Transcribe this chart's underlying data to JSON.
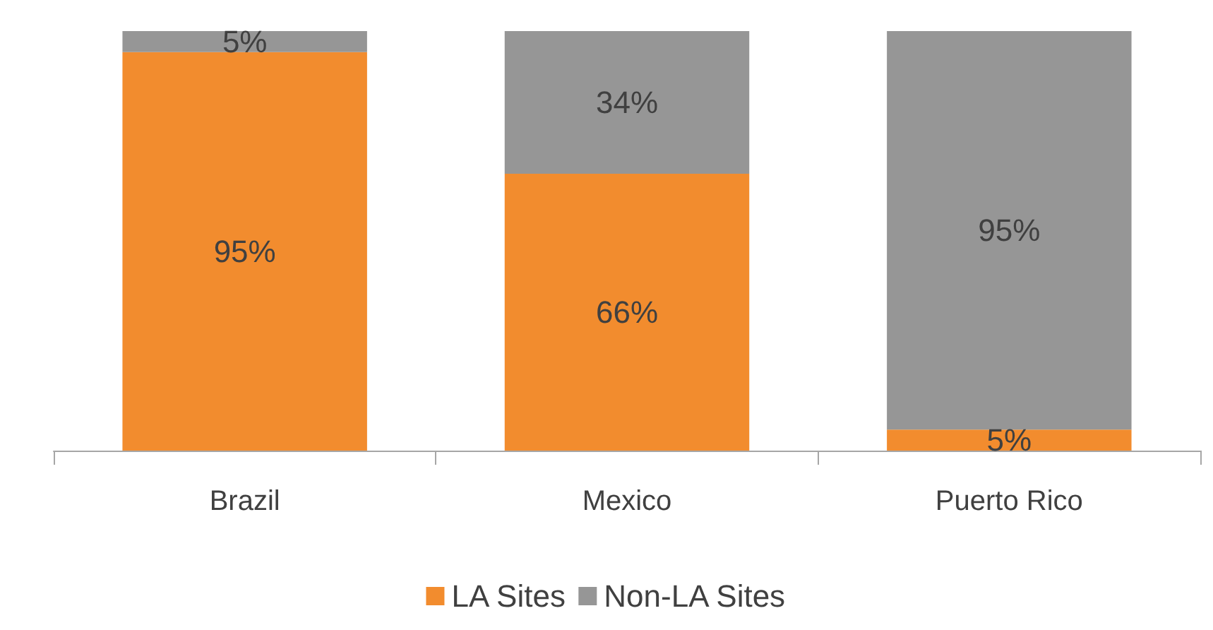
{
  "chart_data": {
    "type": "bar",
    "stacked": true,
    "categories": [
      "Brazil",
      "Mexico",
      "Puerto Rico"
    ],
    "series": [
      {
        "name": "LA Sites",
        "color": "#f28c2e",
        "values": [
          95,
          66,
          5
        ],
        "value_labels": [
          "95%",
          "66%",
          "5%"
        ]
      },
      {
        "name": "Non-LA Sites",
        "color": "#969696",
        "values": [
          5,
          34,
          95
        ],
        "value_labels": [
          "5%",
          "34%",
          "95%"
        ]
      }
    ],
    "tick_labels": "x",
    "legend": "bottom"
  }
}
